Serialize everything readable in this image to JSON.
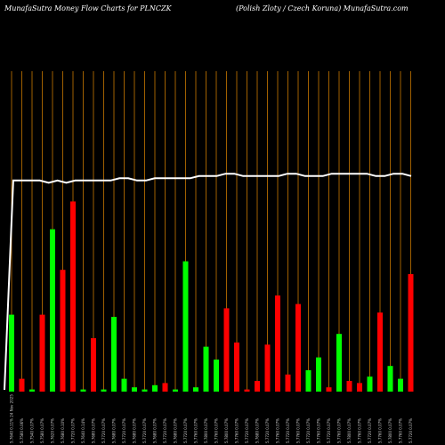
{
  "header": {
    "title_left": "MunafaSutra  Money Flow  Charts for PLNCZK",
    "title_right": "(Polish Zloty / Czech Koruna) MunafaSutra.com"
  },
  "colors": {
    "background": "#000000",
    "up": "#00ff00",
    "down": "#ff0000",
    "price_line": "#ffffff",
    "grid": "#c87800"
  },
  "chart_data": {
    "type": "bar",
    "ylim": [
      0,
      100
    ],
    "price_line": [
      0,
      93,
      93,
      93,
      93,
      92,
      93,
      92,
      93,
      93,
      93,
      93,
      93,
      94,
      94,
      93,
      93,
      94,
      94,
      94,
      94,
      94,
      95,
      95,
      95,
      96,
      96,
      95,
      95,
      95,
      95,
      95,
      96,
      96,
      95,
      95,
      95,
      96,
      96,
      96,
      96,
      96,
      95,
      95,
      96,
      96,
      95
    ],
    "bars": [
      {
        "label": "5.7640 0.11% 24 Nov 2025",
        "value": 36,
        "direction": "up"
      },
      {
        "label": "5.7580 0.06%",
        "value": 6,
        "direction": "down"
      },
      {
        "label": "5.7540 0.07%",
        "value": 1,
        "direction": "up"
      },
      {
        "label": "5.7580 0.07%",
        "value": 36,
        "direction": "down"
      },
      {
        "label": "5.7620 0.07%",
        "value": 76,
        "direction": "up"
      },
      {
        "label": "5.7680 0.10%",
        "value": 57,
        "direction": "down"
      },
      {
        "label": "5.7720 0.07%",
        "value": 89,
        "direction": "down"
      },
      {
        "label": "5.7640 0.14%",
        "value": 1,
        "direction": "up"
      },
      {
        "label": "5.7680 0.07%",
        "value": 25,
        "direction": "down"
      },
      {
        "label": "5.7720 0.07%",
        "value": 1,
        "direction": "up"
      },
      {
        "label": "5.7680 0.07%",
        "value": 35,
        "direction": "up"
      },
      {
        "label": "5.7720 0.07%",
        "value": 6,
        "direction": "up"
      },
      {
        "label": "5.7680 0.07%",
        "value": 2,
        "direction": "up"
      },
      {
        "label": "5.7720 0.07%",
        "value": 1,
        "direction": "up"
      },
      {
        "label": "5.7680 0.07%",
        "value": 3,
        "direction": "up"
      },
      {
        "label": "5.7720 0.07%",
        "value": 4,
        "direction": "down"
      },
      {
        "label": "5.7680 0.07%",
        "value": 1,
        "direction": "up"
      },
      {
        "label": "5.7720 0.07%",
        "value": 61,
        "direction": "up"
      },
      {
        "label": "5.7760 0.07%",
        "value": 2,
        "direction": "up"
      },
      {
        "label": "5.7800 0.07%",
        "value": 21,
        "direction": "up"
      },
      {
        "label": "5.7760 0.07%",
        "value": 15,
        "direction": "up"
      },
      {
        "label": "5.7800 0.07%",
        "value": 39,
        "direction": "down"
      },
      {
        "label": "5.7760 0.07%",
        "value": 23,
        "direction": "down"
      },
      {
        "label": "5.7720 0.07%",
        "value": 1,
        "direction": "down"
      },
      {
        "label": "5.7680 0.07%",
        "value": 5,
        "direction": "down"
      },
      {
        "label": "5.7720 0.07%",
        "value": 22,
        "direction": "down"
      },
      {
        "label": "5.7760 0.07%",
        "value": 45,
        "direction": "down"
      },
      {
        "label": "5.7720 0.07%",
        "value": 8,
        "direction": "down"
      },
      {
        "label": "5.7760 0.07%",
        "value": 41,
        "direction": "down"
      },
      {
        "label": "5.7720 0.07%",
        "value": 10,
        "direction": "up"
      },
      {
        "label": "5.7760 0.07%",
        "value": 16,
        "direction": "up"
      },
      {
        "label": "5.7720 0.07%",
        "value": 2,
        "direction": "down"
      },
      {
        "label": "5.7760 0.07%",
        "value": 27,
        "direction": "up"
      },
      {
        "label": "5.7800 0.07%",
        "value": 5,
        "direction": "down"
      },
      {
        "label": "5.7760 0.07%",
        "value": 4,
        "direction": "down"
      },
      {
        "label": "5.7720 0.07%",
        "value": 7,
        "direction": "up"
      },
      {
        "label": "5.7760 0.07%",
        "value": 37,
        "direction": "down"
      },
      {
        "label": "5.7800 0.07%",
        "value": 12,
        "direction": "up"
      },
      {
        "label": "5.7760 0.07%",
        "value": 6,
        "direction": "up"
      },
      {
        "label": "5.7720 0.07%",
        "value": 55,
        "direction": "down"
      }
    ]
  }
}
